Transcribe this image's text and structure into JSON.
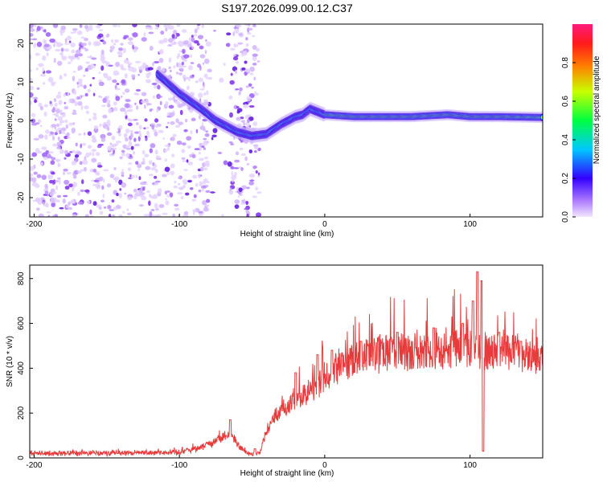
{
  "title": "S197.2026.099.00.12.C37",
  "chart_data": [
    {
      "type": "heatmap",
      "xlabel": "Height of straight line (km)",
      "ylabel": "Frequency (Hz)",
      "xlim": [
        -203,
        150
      ],
      "ylim": [
        -25,
        25
      ],
      "xticks": [
        -200,
        -100,
        0,
        100
      ],
      "yticks": [
        20,
        10,
        0,
        -10,
        -20
      ],
      "xtick_labels": [
        "-200",
        "-100",
        "0",
        "100"
      ],
      "ytick_labels": [
        "20",
        "10",
        "0",
        "-10",
        "-20"
      ],
      "colorbar": {
        "label": "Normalized spectral amplitude",
        "range": [
          0,
          1
        ],
        "ticks": [
          0,
          0.2,
          0.4,
          0.6,
          0.8
        ],
        "tick_labels": [
          "0.0",
          "0.2",
          "0.4",
          "0.6",
          "0.8"
        ]
      },
      "ridge": [
        [
          -115,
          12
        ],
        [
          -100,
          7
        ],
        [
          -85,
          3
        ],
        [
          -75,
          0
        ],
        [
          -60,
          -3
        ],
        [
          -50,
          -4
        ],
        [
          -40,
          -3.5
        ],
        [
          -30,
          -1
        ],
        [
          -20,
          1
        ],
        [
          -15,
          1.5
        ],
        [
          -10,
          3
        ],
        [
          0,
          1.5
        ],
        [
          20,
          1
        ],
        [
          60,
          1
        ],
        [
          85,
          1.5
        ],
        [
          100,
          1
        ],
        [
          120,
          1
        ],
        [
          150,
          0.8
        ]
      ],
      "noise_region": [
        -203,
        -45
      ]
    },
    {
      "type": "line",
      "xlabel": "Height of straight line (km)",
      "ylabel": "SNR (10 * v/v)",
      "xlim": [
        -203,
        150
      ],
      "ylim": [
        0,
        860
      ],
      "xticks": [
        -200,
        -100,
        0,
        100
      ],
      "yticks": [
        0,
        200,
        400,
        600,
        800
      ],
      "xtick_labels": [
        "-200",
        "-100",
        "0",
        "100"
      ],
      "ytick_labels": [
        "0",
        "200",
        "400",
        "600",
        "800"
      ],
      "series_color": "#e83a3a",
      "envelope": [
        [
          -203,
          20
        ],
        [
          -130,
          22
        ],
        [
          -100,
          25
        ],
        [
          -90,
          40
        ],
        [
          -80,
          60
        ],
        [
          -70,
          90
        ],
        [
          -65,
          110
        ],
        [
          -60,
          60
        ],
        [
          -55,
          30
        ],
        [
          -50,
          15
        ],
        [
          -45,
          20
        ],
        [
          -42,
          80
        ],
        [
          -35,
          180
        ],
        [
          -25,
          240
        ],
        [
          -15,
          280
        ],
        [
          -5,
          320
        ],
        [
          0,
          360
        ],
        [
          10,
          410
        ],
        [
          20,
          440
        ],
        [
          30,
          460
        ],
        [
          50,
          475
        ],
        [
          70,
          485
        ],
        [
          90,
          490
        ],
        [
          100,
          490
        ],
        [
          105,
          480
        ],
        [
          110,
          470
        ],
        [
          120,
          470
        ],
        [
          140,
          460
        ],
        [
          150,
          455
        ]
      ],
      "spikes": [
        [
          -65,
          170
        ],
        [
          -48,
          40
        ],
        [
          -20,
          380
        ],
        [
          -5,
          460
        ],
        [
          5,
          480
        ],
        [
          25,
          520
        ],
        [
          50,
          560
        ],
        [
          75,
          580
        ],
        [
          95,
          600
        ],
        [
          102,
          700
        ],
        [
          105,
          830
        ],
        [
          108,
          790
        ],
        [
          109,
          30
        ],
        [
          120,
          560
        ],
        [
          135,
          520
        ]
      ]
    }
  ]
}
